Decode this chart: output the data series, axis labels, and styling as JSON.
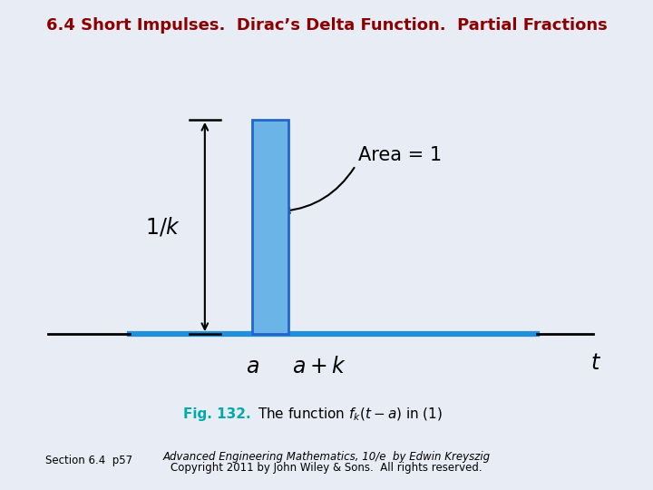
{
  "title": "6.4 Short Impulses.  Dirac’s Delta Function.  Partial Fractions",
  "title_color": "#8B0000",
  "title_fontsize": 13,
  "bg_outer": "#ccd4e8",
  "bg_inner": "#ffffff",
  "bg_figure": "#e8ecf5",
  "rect_color": "#6ab4e8",
  "rect_edge_color": "#2266cc",
  "fig_caption_bold": "Fig. 132.",
  "fig_caption_bold_color": "#00aaaa",
  "footer_left": "Section 6.4  p57",
  "footer_right_line1": "Advanced Engineering Mathematics, 10/e  by Edwin Kreyszig",
  "footer_right_line2": "Copyright 2011 by John Wiley & Sons.  All rights reserved."
}
